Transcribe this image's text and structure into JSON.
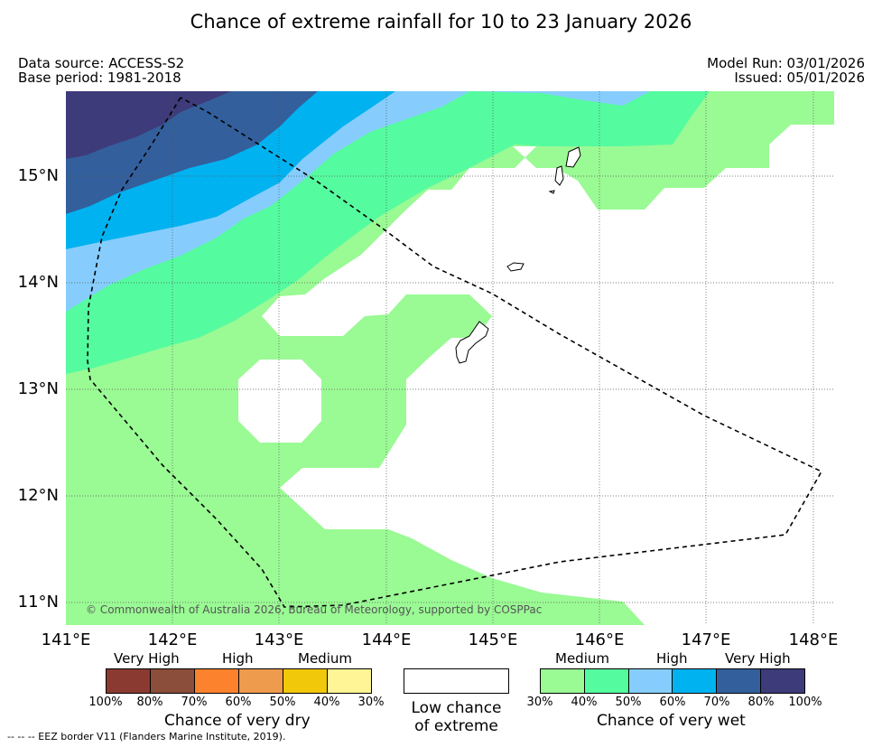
{
  "title": "Chance of extreme rainfall for 10 to 23 January 2026",
  "meta": {
    "data_source": "Data source: ACCESS-S2",
    "base_period": "Base period: 1981-2018",
    "model_run": "Model Run: 03/01/2026",
    "issued": "Issued: 05/01/2026"
  },
  "map": {
    "copyright": "© Commonwealth of Australia 2026, Bureau of Meteorology, supported by COSPPac",
    "lon_labels": [
      "141°E",
      "142°E",
      "143°E",
      "144°E",
      "145°E",
      "146°E",
      "147°E",
      "148°E"
    ],
    "lat_labels": [
      "15°N",
      "14°N",
      "13°N",
      "12°N",
      "11°N"
    ],
    "colors": {
      "medium": "#9afa94",
      "medium_40": "#55fb9f",
      "high_50": "#86cdfd",
      "high_60": "#00b2f0",
      "very_high_70": "#335f9c",
      "very_high_80": "#3e3b7a"
    }
  },
  "legend": {
    "dry": {
      "categories": [
        "Very High",
        "High",
        "Medium"
      ],
      "colors": [
        "#8b3a32",
        "#8b4e3a",
        "#fd822d",
        "#ee9b4e",
        "#f1c80a",
        "#fff596"
      ],
      "ticks": [
        "100%",
        "80%",
        "70%",
        "60%",
        "50%",
        "40%",
        "30%"
      ],
      "title": "Chance of very dry"
    },
    "low": {
      "line1": "Low chance",
      "line2": "of extreme"
    },
    "wet": {
      "categories": [
        "Medium",
        "High",
        "Very High"
      ],
      "colors": [
        "#9afa94",
        "#55fb9f",
        "#86cdfd",
        "#00b2f0",
        "#335f9c",
        "#3e3b7a"
      ],
      "ticks": [
        "30%",
        "40%",
        "50%",
        "60%",
        "70%",
        "80%",
        "100%"
      ],
      "title": "Chance of very wet"
    }
  },
  "footnote": "-- -- -- EEZ border V11 (Flanders Marine Institute, 2019)."
}
